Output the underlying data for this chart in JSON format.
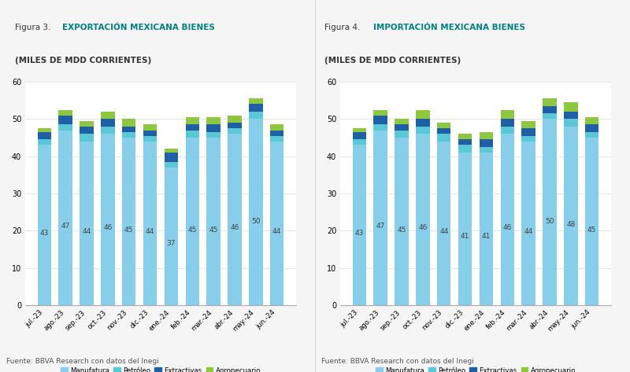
{
  "fig3_title_prefix": "Figura 3. ",
  "fig3_title_bold": "EXPORTACIÓN MEXICANA BIENES",
  "fig3_subtitle": "(MILES DE MDD CORRIENTES)",
  "fig4_title_prefix": "Figura 4. ",
  "fig4_title_bold": "IMPORTACIÓN MEXICANA BIENES",
  "fig4_subtitle": "(MILES DE MDD CORRIENTES)",
  "months": [
    "jul.-23",
    "ago.-23",
    "sep.-23",
    "oct.-23",
    "nov.-23",
    "dic.-23",
    "ene.-24",
    "feb.-24",
    "mar.-24",
    "abr.-24",
    "may.-24",
    "jun.-24"
  ],
  "fig3_manufatura": [
    43,
    47,
    44,
    46,
    45,
    44,
    37,
    45,
    45,
    46,
    50,
    44
  ],
  "fig3_petroleo": [
    1.5,
    1.5,
    2.0,
    2.0,
    1.5,
    1.5,
    1.5,
    2.0,
    1.5,
    1.5,
    2.0,
    1.5
  ],
  "fig3_extractivas": [
    2.0,
    2.5,
    2.0,
    2.0,
    1.5,
    1.5,
    2.5,
    1.5,
    2.0,
    1.5,
    2.0,
    1.5
  ],
  "fig3_agropecuario": [
    1.0,
    1.5,
    1.5,
    2.0,
    2.0,
    1.5,
    1.0,
    2.0,
    2.0,
    2.0,
    1.5,
    1.5
  ],
  "fig4_manufatura": [
    43,
    47,
    45,
    46,
    44,
    41,
    41,
    46,
    44,
    50,
    48,
    45
  ],
  "fig4_petroleo": [
    1.5,
    1.5,
    2.0,
    2.0,
    2.0,
    2.0,
    1.5,
    2.0,
    1.5,
    1.5,
    2.0,
    1.5
  ],
  "fig4_extractivas": [
    2.0,
    2.5,
    1.5,
    2.0,
    1.5,
    1.5,
    2.0,
    2.0,
    2.0,
    2.0,
    2.0,
    2.0
  ],
  "fig4_agropecuario": [
    1.0,
    1.5,
    1.5,
    2.5,
    1.5,
    1.5,
    2.0,
    2.5,
    2.0,
    2.0,
    2.5,
    2.0
  ],
  "color_manufatura": "#87CEEB",
  "color_petroleo": "#5BC8D8",
  "color_extractivas": "#1F5FA6",
  "color_agropecuario": "#8DC63F",
  "ylim": [
    0,
    60
  ],
  "yticks": [
    0,
    10,
    20,
    30,
    40,
    50,
    60
  ],
  "legend_labels": [
    "Manufatura",
    "Petróleo",
    "Extractivas",
    "Agropecuario"
  ],
  "source_text": "Fuente: BBVA Research con datos del Inegi",
  "header_bg": "#e8e8e8",
  "plot_bg": "#ffffff",
  "fig_bg": "#f5f5f5",
  "bar_width": 0.65,
  "label_color": "#555555",
  "grid_color": "#dddddd",
  "title_color": "#008080",
  "prefix_color": "#333333",
  "subtitle_color": "#333333"
}
